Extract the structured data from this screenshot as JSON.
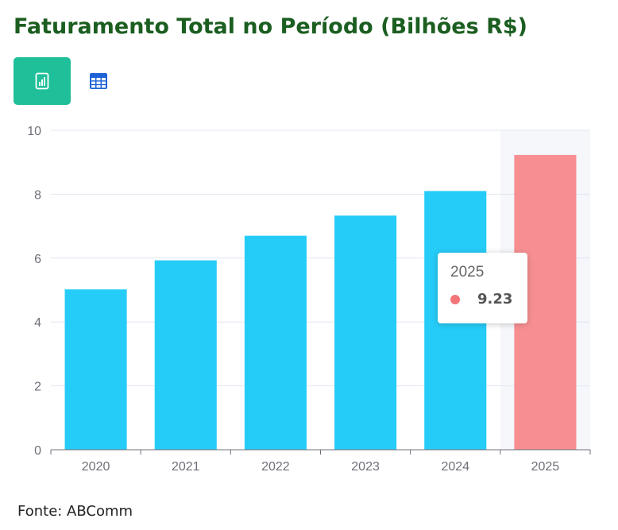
{
  "title": "Faturamento Total no Período (Bilhões R$)",
  "toolbar": {
    "chart_view_icon": "bar-chart-icon",
    "table_view_icon": "table-icon"
  },
  "colors": {
    "bar": "#26ccf8",
    "highlight_bar": "#f78f92",
    "tooltip_dot": "#f27577",
    "title": "#1b5e20",
    "active_button": "#1fbf99"
  },
  "chart_data": {
    "type": "bar",
    "categories": [
      "2020",
      "2021",
      "2022",
      "2023",
      "2024",
      "2025"
    ],
    "values": [
      5.02,
      5.93,
      6.7,
      7.33,
      8.1,
      9.23
    ],
    "ylim": [
      0,
      10
    ],
    "yticks": [
      0,
      2,
      4,
      6,
      8,
      10
    ],
    "grid": true,
    "highlight_index": 5,
    "tooltip": {
      "category": "2025",
      "value": "9.23"
    }
  },
  "source": "Fonte: ABComm"
}
